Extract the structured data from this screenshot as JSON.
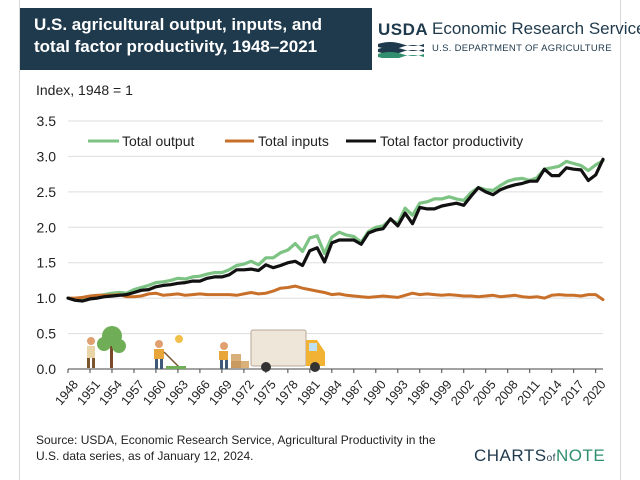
{
  "header": {
    "title": "U.S. agricultural output, inputs, and total factor productivity, 1948–2021",
    "agency_logo_text": "USDA",
    "agency_name": "Economic Research Service",
    "department": "U.S. DEPARTMENT OF AGRICULTURE"
  },
  "axis_unit": "Index, 1948 = 1",
  "source_note": "Source: USDA, Economic Research Service, Agricultural Productivity in the U.S. data series, as of January 12, 2024.",
  "branding": {
    "charts": "CHARTS",
    "of": "of",
    "note": "NOTE"
  },
  "colors": {
    "total_output": "#7dc383",
    "total_inputs": "#c8702a",
    "tfp": "#111111",
    "header_bg": "#1f3a4c"
  },
  "chart_data": {
    "type": "line",
    "title": "U.S. agricultural output, inputs, and total factor productivity, 1948–2021",
    "ylabel": "Index, 1948 = 1",
    "xlabel": "",
    "ylim": [
      0,
      3.5
    ],
    "xlim": [
      1948,
      2021
    ],
    "yticks": [
      "0.0",
      "0.5",
      "1.0",
      "1.5",
      "2.0",
      "2.5",
      "3.0",
      "3.5"
    ],
    "xticks": [
      "1948",
      "1951",
      "1954",
      "1957",
      "1960",
      "1963",
      "1966",
      "1969",
      "1972",
      "1975",
      "1978",
      "1981",
      "1984",
      "1987",
      "1990",
      "1993",
      "1996",
      "1999",
      "2002",
      "2005",
      "2008",
      "2011",
      "2014",
      "2017",
      "2020"
    ],
    "legend": [
      "Total output",
      "Total inputs",
      "Total factor productivity"
    ],
    "x": [
      1948,
      1949,
      1950,
      1951,
      1952,
      1953,
      1954,
      1955,
      1956,
      1957,
      1958,
      1959,
      1960,
      1961,
      1962,
      1963,
      1964,
      1965,
      1966,
      1967,
      1968,
      1969,
      1970,
      1971,
      1972,
      1973,
      1974,
      1975,
      1976,
      1977,
      1978,
      1979,
      1980,
      1981,
      1982,
      1983,
      1984,
      1985,
      1986,
      1987,
      1988,
      1989,
      1990,
      1991,
      1992,
      1993,
      1994,
      1995,
      1996,
      1997,
      1998,
      1999,
      2000,
      2001,
      2002,
      2003,
      2004,
      2005,
      2006,
      2007,
      2008,
      2009,
      2010,
      2011,
      2012,
      2013,
      2014,
      2015,
      2016,
      2017,
      2018,
      2019,
      2020,
      2021
    ],
    "series": [
      {
        "name": "Total output",
        "values": [
          1.0,
          0.98,
          0.99,
          1.02,
          1.03,
          1.05,
          1.07,
          1.08,
          1.07,
          1.12,
          1.15,
          1.18,
          1.22,
          1.23,
          1.25,
          1.28,
          1.27,
          1.3,
          1.31,
          1.34,
          1.36,
          1.36,
          1.4,
          1.46,
          1.48,
          1.52,
          1.47,
          1.57,
          1.57,
          1.64,
          1.68,
          1.77,
          1.66,
          1.85,
          1.88,
          1.63,
          1.86,
          1.93,
          1.89,
          1.87,
          1.79,
          1.94,
          2.0,
          2.02,
          2.11,
          2.05,
          2.27,
          2.17,
          2.34,
          2.36,
          2.4,
          2.4,
          2.43,
          2.4,
          2.38,
          2.49,
          2.56,
          2.53,
          2.52,
          2.59,
          2.65,
          2.68,
          2.69,
          2.66,
          2.7,
          2.82,
          2.84,
          2.86,
          2.93,
          2.9,
          2.87,
          2.8,
          2.88,
          2.94
        ]
      },
      {
        "name": "Total inputs",
        "values": [
          1.0,
          1.0,
          1.01,
          1.03,
          1.04,
          1.04,
          1.04,
          1.05,
          1.02,
          1.02,
          1.03,
          1.06,
          1.07,
          1.04,
          1.05,
          1.06,
          1.04,
          1.05,
          1.06,
          1.05,
          1.05,
          1.05,
          1.05,
          1.04,
          1.06,
          1.08,
          1.06,
          1.07,
          1.1,
          1.14,
          1.15,
          1.17,
          1.14,
          1.12,
          1.1,
          1.08,
          1.05,
          1.06,
          1.04,
          1.03,
          1.02,
          1.01,
          1.02,
          1.03,
          1.02,
          1.01,
          1.04,
          1.07,
          1.05,
          1.06,
          1.05,
          1.04,
          1.05,
          1.04,
          1.03,
          1.03,
          1.02,
          1.03,
          1.04,
          1.02,
          1.03,
          1.04,
          1.02,
          1.01,
          1.02,
          1.0,
          1.04,
          1.05,
          1.04,
          1.04,
          1.03,
          1.05,
          1.05,
          0.98
        ]
      },
      {
        "name": "Total factor productivity",
        "values": [
          1.0,
          0.97,
          0.96,
          0.99,
          1.0,
          1.02,
          1.03,
          1.04,
          1.05,
          1.08,
          1.11,
          1.12,
          1.16,
          1.18,
          1.19,
          1.21,
          1.22,
          1.24,
          1.24,
          1.28,
          1.3,
          1.3,
          1.33,
          1.4,
          1.4,
          1.41,
          1.39,
          1.47,
          1.43,
          1.46,
          1.5,
          1.52,
          1.46,
          1.67,
          1.71,
          1.51,
          1.78,
          1.82,
          1.82,
          1.82,
          1.76,
          1.92,
          1.96,
          1.98,
          2.12,
          2.02,
          2.2,
          2.05,
          2.28,
          2.26,
          2.26,
          2.3,
          2.32,
          2.34,
          2.31,
          2.44,
          2.56,
          2.5,
          2.46,
          2.53,
          2.57,
          2.6,
          2.62,
          2.65,
          2.65,
          2.82,
          2.73,
          2.73,
          2.84,
          2.82,
          2.81,
          2.66,
          2.74,
          2.96
        ]
      }
    ]
  }
}
